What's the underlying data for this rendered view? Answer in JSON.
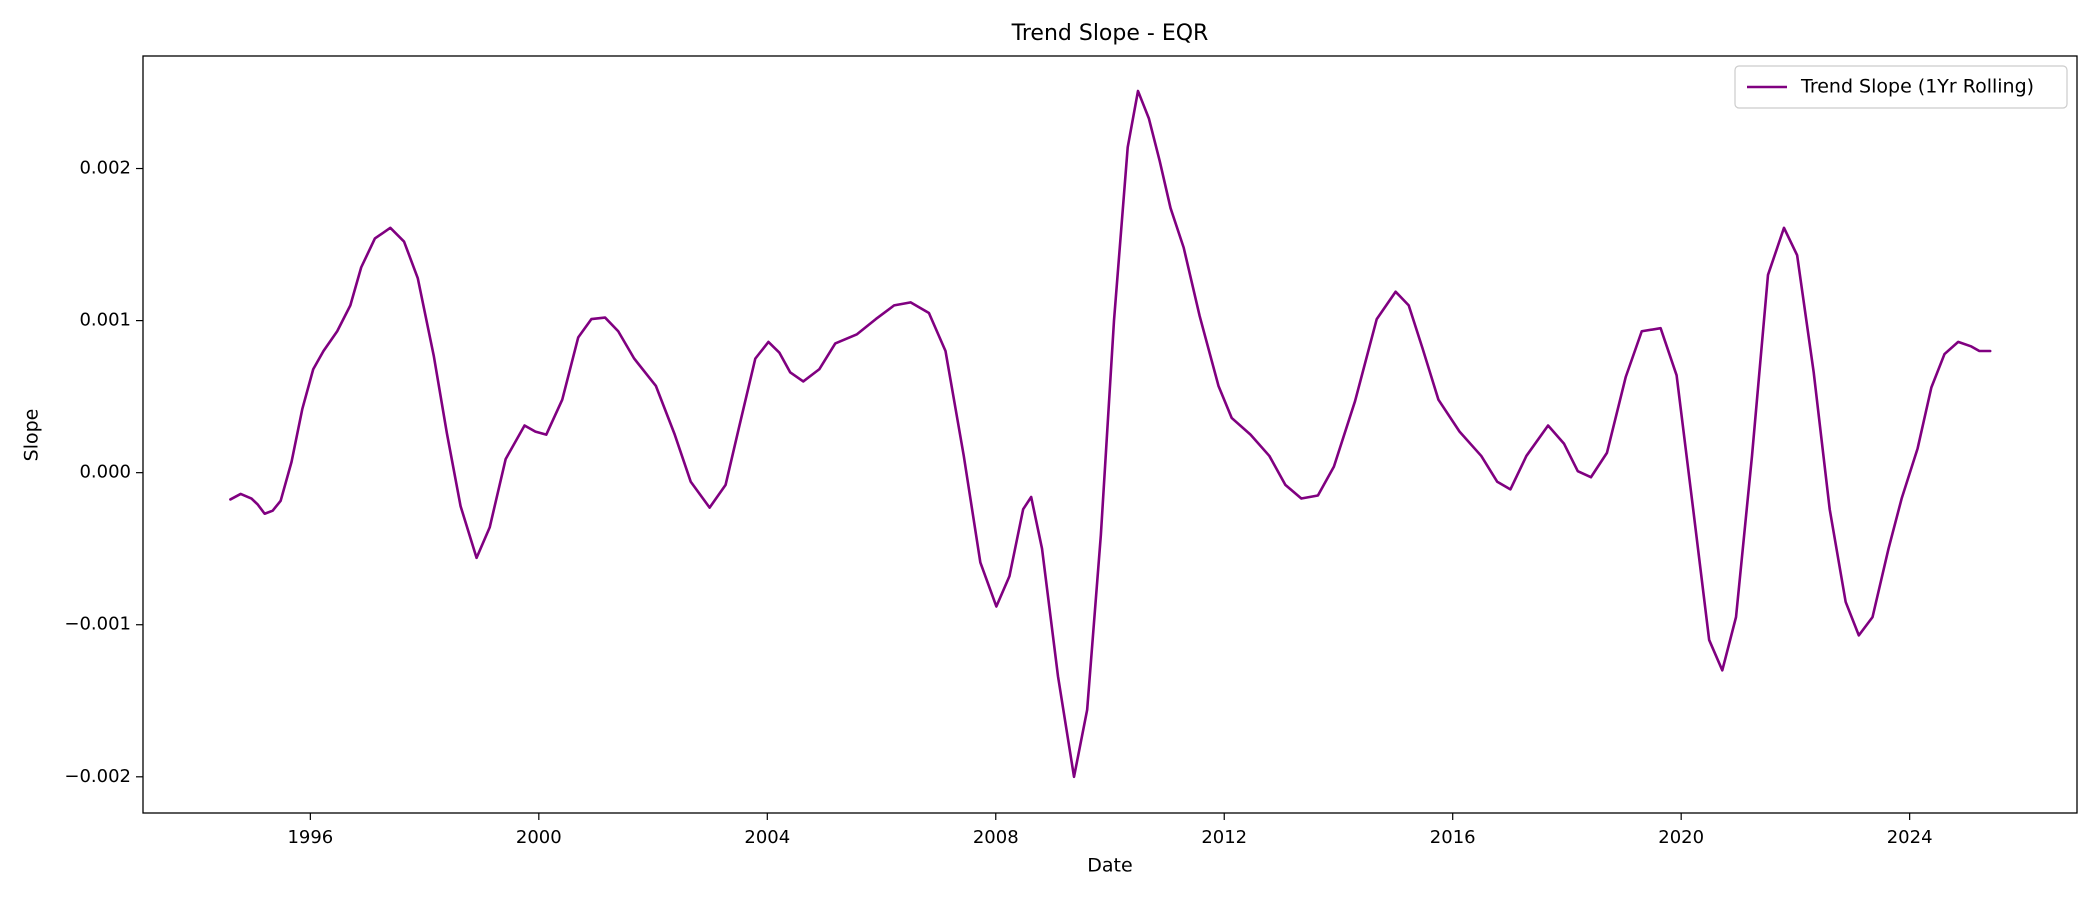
{
  "chart_data": {
    "type": "line",
    "title": "Trend Slope - EQR",
    "x_label": "Date",
    "y_label": "Slope",
    "xlim": [
      1993.07,
      2026.93
    ],
    "xticks": [
      1996,
      2000,
      2004,
      2008,
      2012,
      2016,
      2020,
      2024
    ],
    "ylim": [
      -0.002238,
      0.00274
    ],
    "yticks": [
      {
        "value": -0.002,
        "label": "−0.002"
      },
      {
        "value": -0.001,
        "label": "−0.001"
      },
      {
        "value": 0,
        "label": "0.000"
      },
      0.001,
      0.002
    ],
    "grid": false,
    "legend_loc": "upper right",
    "x": [
      1994.6,
      1994.78,
      1994.97,
      1995.08,
      1995.2,
      1995.34,
      1995.48,
      1995.67,
      1995.86,
      1996.05,
      1996.23,
      1996.47,
      1996.7,
      1996.89,
      1997.13,
      1997.4,
      1997.64,
      1997.88,
      1998.16,
      1998.39,
      1998.63,
      1998.91,
      1999.14,
      1999.42,
      1999.75,
      1999.94,
      2000.13,
      2000.41,
      2000.69,
      2000.92,
      2001.16,
      2001.39,
      2001.67,
      2002.05,
      2002.38,
      2002.66,
      2002.99,
      2003.27,
      2003.5,
      2003.79,
      2004.02,
      2004.21,
      2004.4,
      2004.63,
      2004.91,
      2005.19,
      2005.57,
      2005.9,
      2006.22,
      2006.51,
      2006.83,
      2007.12,
      2007.44,
      2007.73,
      2008.01,
      2008.24,
      2008.48,
      2008.62,
      2008.81,
      2009.09,
      2009.37,
      2009.6,
      2009.84,
      2010.07,
      2010.31,
      2010.49,
      2010.68,
      2010.87,
      2011.06,
      2011.29,
      2011.57,
      2011.9,
      2012.13,
      2012.46,
      2012.79,
      2013.07,
      2013.35,
      2013.64,
      2013.92,
      2014.29,
      2014.67,
      2015.0,
      2015.23,
      2015.47,
      2015.75,
      2016.12,
      2016.5,
      2016.78,
      2017.01,
      2017.29,
      2017.67,
      2017.95,
      2018.19,
      2018.42,
      2018.7,
      2019.03,
      2019.31,
      2019.64,
      2019.92,
      2020.21,
      2020.49,
      2020.72,
      2020.96,
      2021.24,
      2021.52,
      2021.8,
      2022.03,
      2022.32,
      2022.6,
      2022.88,
      2023.11,
      2023.35,
      2023.63,
      2023.86,
      2024.14,
      2024.38,
      2024.61,
      2024.85,
      2025.08,
      2025.22,
      2025.41
    ],
    "series": [
      {
        "name": "Trend Slope (1Yr Rolling)",
        "color": "#800080",
        "values": [
          -0.000176,
          -0.00014,
          -0.00017,
          -0.00021,
          -0.00027,
          -0.00025,
          -0.000185,
          7e-05,
          0.00042,
          0.00068,
          0.0008,
          0.00093,
          0.0011,
          0.00135,
          0.00154,
          0.00161,
          0.00152,
          0.00128,
          0.00077,
          0.00026,
          -0.00022,
          -0.00056,
          -0.00036,
          9e-05,
          0.00031,
          0.00027,
          0.00025,
          0.00048,
          0.00089,
          0.00101,
          0.00102,
          0.00093,
          0.00075,
          0.00057,
          0.00025,
          -6e-05,
          -0.00023,
          -8e-05,
          0.00029,
          0.00075,
          0.00086,
          0.00079,
          0.00066,
          0.0006,
          0.00068,
          0.00085,
          0.00091,
          0.00101,
          0.0011,
          0.00112,
          0.00105,
          0.0008,
          0.00011,
          -0.00059,
          -0.00088,
          -0.00068,
          -0.00024,
          -0.00016,
          -0.0005,
          -0.00134,
          -0.002,
          -0.00156,
          -0.00041,
          0.001,
          0.00214,
          0.00251,
          0.00233,
          0.00205,
          0.00174,
          0.00148,
          0.00103,
          0.00057,
          0.00036,
          0.00025,
          0.00011,
          -8e-05,
          -0.00017,
          -0.00015,
          4e-05,
          0.00047,
          0.00101,
          0.00119,
          0.0011,
          0.00082,
          0.00048,
          0.00027,
          0.00011,
          -6e-05,
          -0.00011,
          0.00011,
          0.00031,
          0.00019,
          1e-05,
          -3e-05,
          0.00013,
          0.00063,
          0.00093,
          0.00095,
          0.00064,
          -0.00024,
          -0.0011,
          -0.0013,
          -0.00095,
          0.00011,
          0.0013,
          0.00161,
          0.00143,
          0.00066,
          -0.00024,
          -0.00085,
          -0.00107,
          -0.00095,
          -0.0005,
          -0.00017,
          0.00016,
          0.00056,
          0.00078,
          0.00086,
          0.00083,
          0.0008,
          0.0008
        ]
      }
    ]
  }
}
